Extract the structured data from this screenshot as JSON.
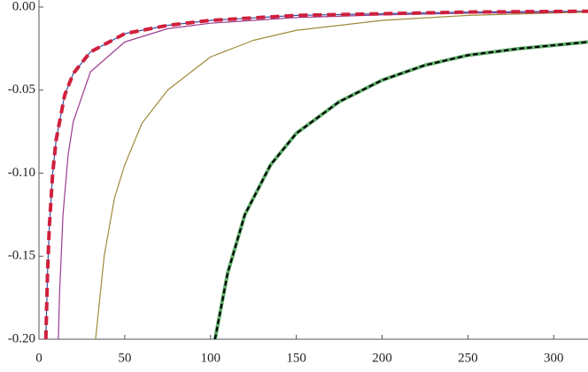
{
  "chart_data": {
    "type": "line",
    "xlim": [
      0,
      320
    ],
    "ylim": [
      -0.2,
      0
    ],
    "xticks": [
      0,
      50,
      100,
      150,
      200,
      250,
      300
    ],
    "yticks": [
      {
        "value": -0.2,
        "label": "-0.20"
      },
      {
        "value": -0.15,
        "label": "-0.15"
      },
      {
        "value": -0.1,
        "label": "-0.10"
      },
      {
        "value": -0.05,
        "label": "-0.05"
      },
      {
        "value": 0,
        "label": "0.00"
      }
    ],
    "series": [
      {
        "color": "#3b4fa0",
        "width": 1.2,
        "dash": false,
        "x": [
          4,
          5,
          6,
          8,
          10,
          15,
          20,
          30,
          50,
          75,
          100,
          150,
          200,
          250,
          320
        ],
        "values": [
          -0.2,
          -0.16,
          -0.133,
          -0.1,
          -0.08,
          -0.053,
          -0.04,
          -0.027,
          -0.016,
          -0.011,
          -0.008,
          -0.005,
          -0.004,
          -0.003,
          -0.0025
        ]
      },
      {
        "color": "#9a3c8f",
        "width": 1.2,
        "dash": false,
        "x": [
          11.3,
          12,
          14,
          17,
          20,
          30,
          50,
          75,
          100,
          150,
          200,
          250,
          320
        ],
        "values": [
          -0.2,
          -0.173,
          -0.125,
          -0.089,
          -0.069,
          -0.039,
          -0.021,
          -0.013,
          -0.0097,
          -0.0063,
          -0.0047,
          -0.0037,
          -0.0029
        ]
      },
      {
        "color": "#a08a3a",
        "width": 1.2,
        "dash": false,
        "x": [
          33,
          38,
          44,
          50,
          60,
          75,
          100,
          125,
          150,
          200,
          250,
          320
        ],
        "values": [
          -0.2,
          -0.15,
          -0.115,
          -0.095,
          -0.07,
          -0.05,
          -0.03,
          -0.02,
          -0.014,
          -0.008,
          -0.005,
          -0.003
        ]
      },
      {
        "color": "#5fae6a",
        "width": 4,
        "dash": false,
        "x": [
          102.6,
          110,
          120,
          135,
          150,
          175,
          200,
          225,
          250,
          280,
          320
        ],
        "values": [
          -0.2,
          -0.16,
          -0.125,
          -0.095,
          -0.076,
          -0.057,
          -0.044,
          -0.035,
          -0.029,
          -0.025,
          -0.021
        ]
      },
      {
        "color": "#000000",
        "width": 2.2,
        "dash": true,
        "x": [
          102.6,
          110,
          120,
          135,
          150,
          175,
          200,
          225,
          250,
          280,
          320
        ],
        "values": [
          -0.2,
          -0.16,
          -0.125,
          -0.095,
          -0.076,
          -0.057,
          -0.044,
          -0.035,
          -0.029,
          -0.025,
          -0.021
        ]
      },
      {
        "color": "#d0203c",
        "width": 4,
        "dash": true,
        "x": [
          4,
          5,
          6,
          8,
          10,
          15,
          20,
          30,
          50,
          75,
          100,
          150,
          200,
          250,
          320
        ],
        "values": [
          -0.2,
          -0.16,
          -0.133,
          -0.1,
          -0.08,
          -0.053,
          -0.04,
          -0.027,
          -0.016,
          -0.011,
          -0.008,
          -0.005,
          -0.004,
          -0.003,
          -0.0025
        ]
      }
    ]
  }
}
